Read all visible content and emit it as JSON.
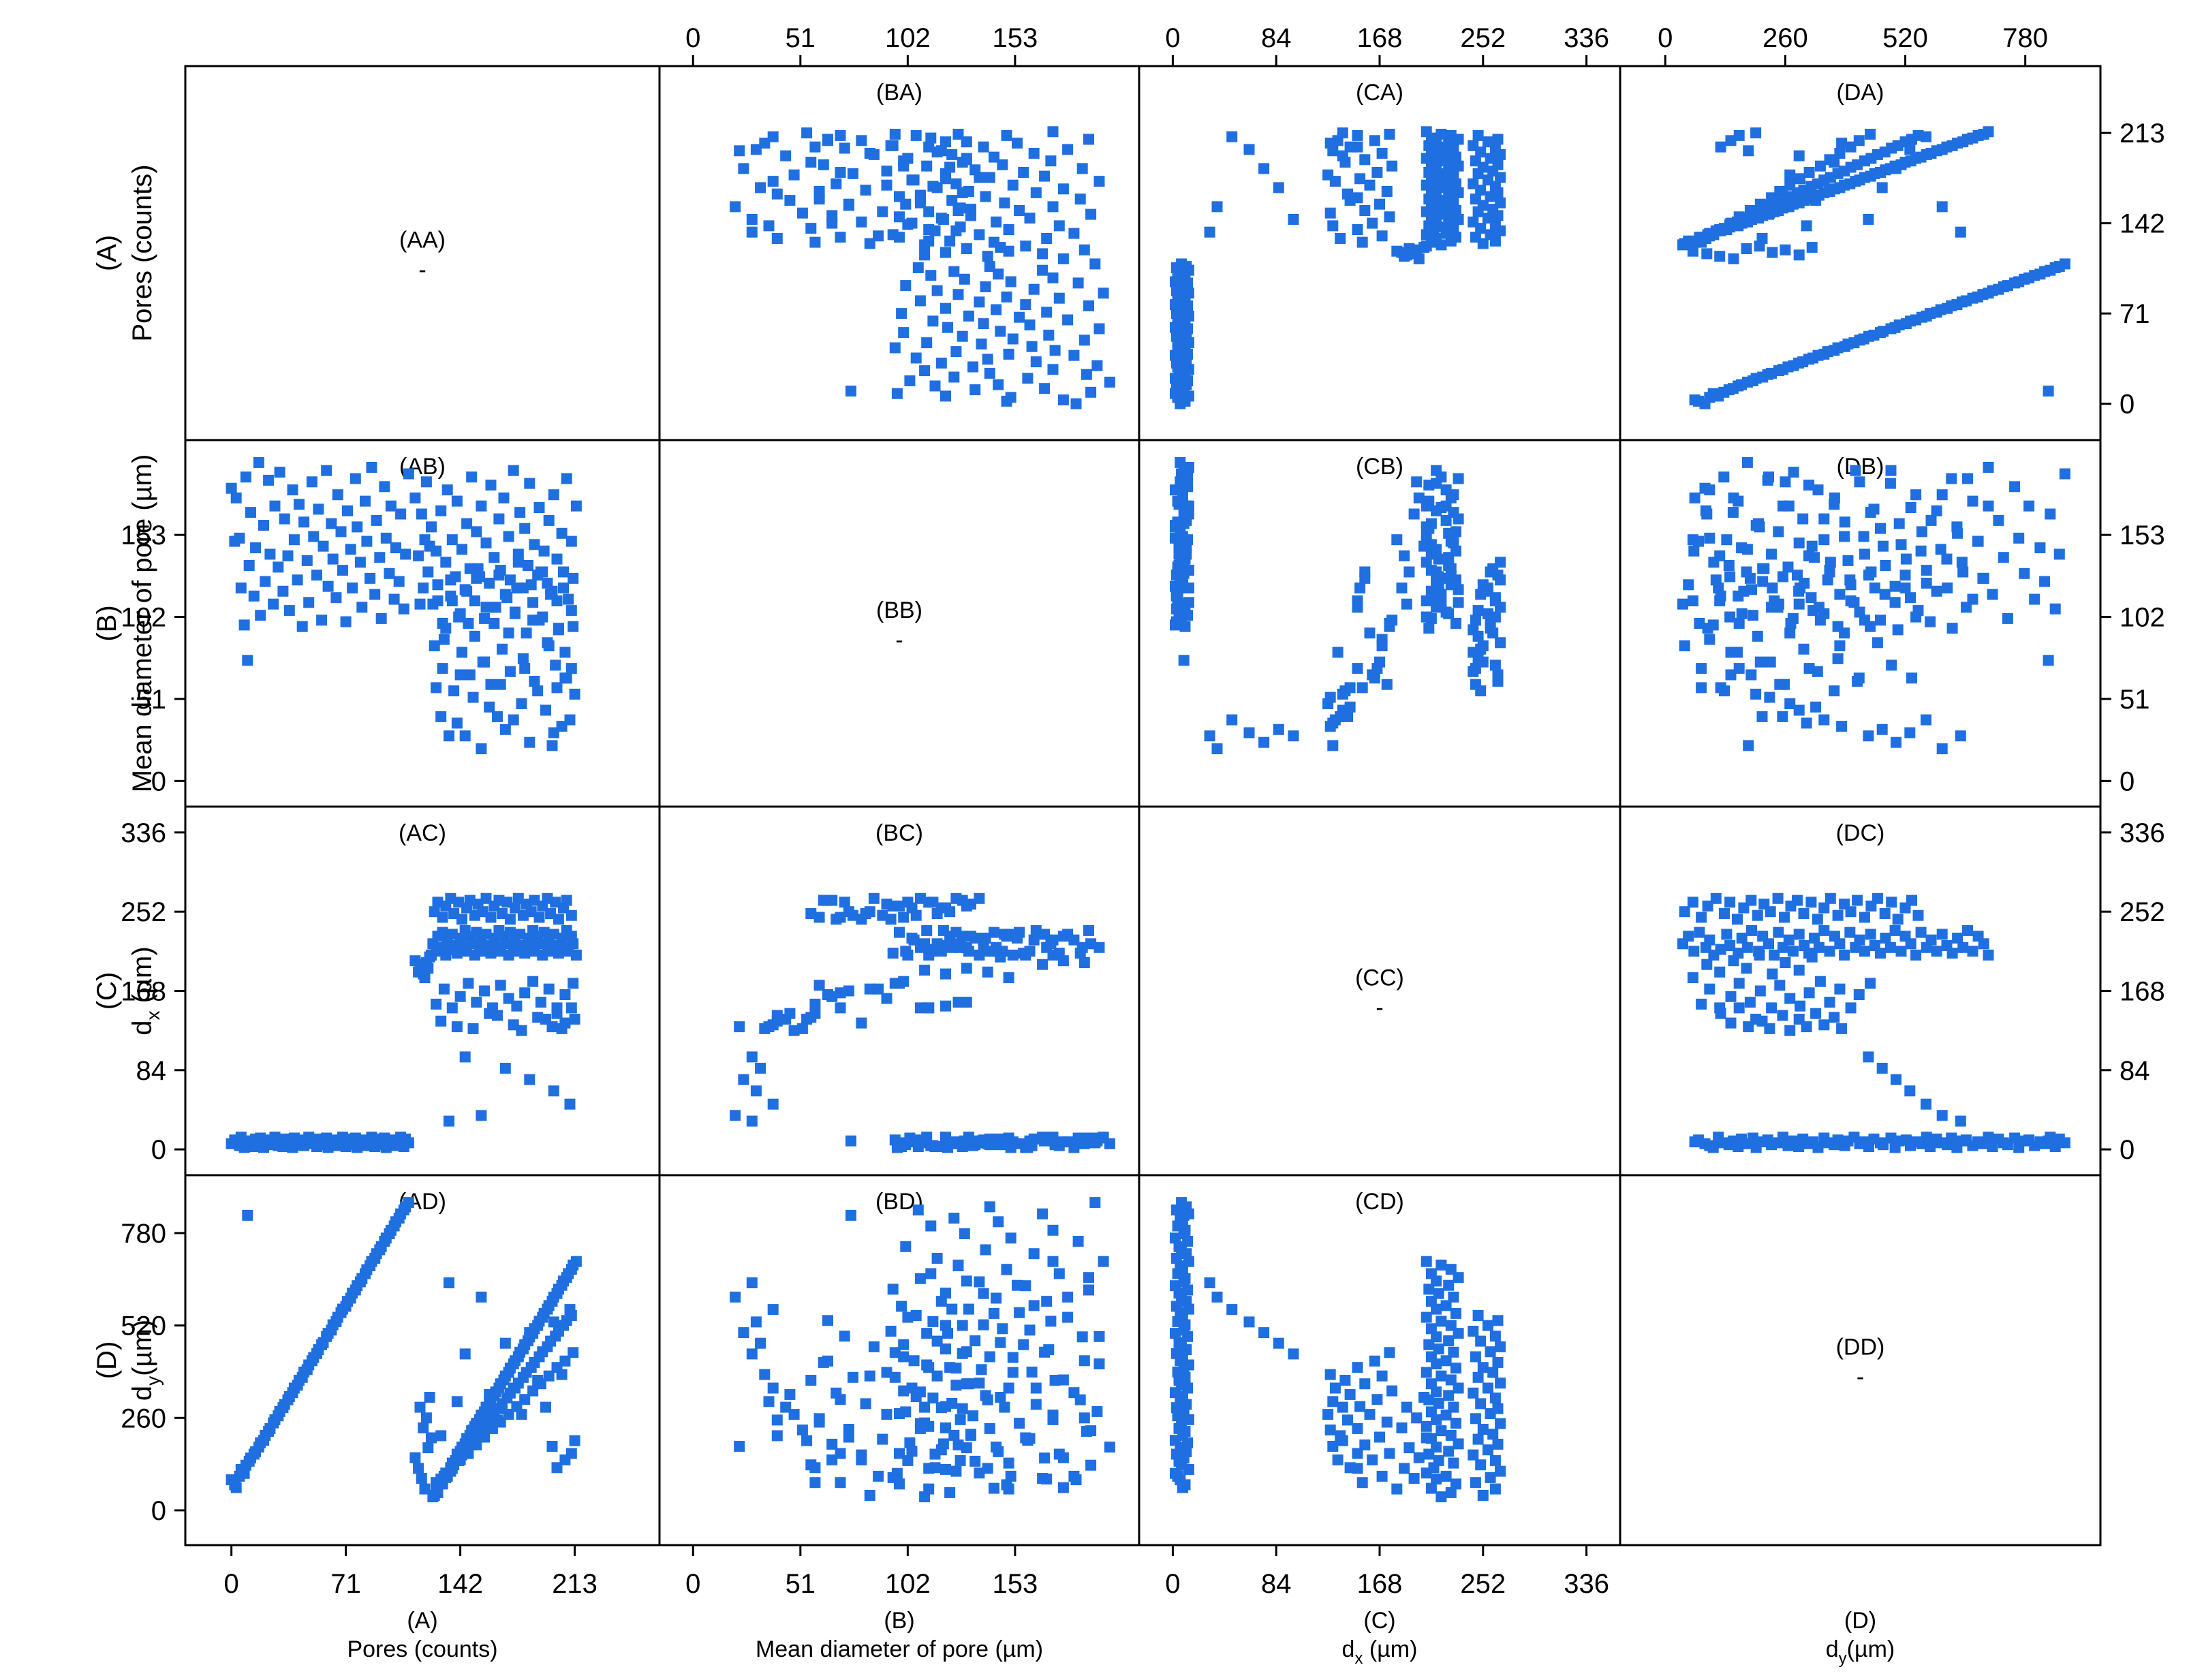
{
  "chart_data": {
    "type": "scatter",
    "layout": "scatter-matrix 4x4",
    "marker_color": "#1f6fe0",
    "marker_shape": "square",
    "grid": false,
    "variables": [
      {
        "key": "A",
        "label": "(A)",
        "name": "Pores (counts)",
        "ticks": [
          "0",
          "71",
          "142",
          "213"
        ],
        "tick_values": [
          0,
          71,
          142,
          213
        ],
        "range": [
          -8,
          245
        ]
      },
      {
        "key": "B",
        "label": "(B)",
        "name": "Mean diameter of pore (µm)",
        "ticks": [
          "0",
          "51",
          "102",
          "153"
        ],
        "tick_values": [
          0,
          51,
          102,
          153
        ],
        "range": [
          0,
          196
        ]
      },
      {
        "key": "C",
        "label": "(C)",
        "name_main": "d",
        "name_sub": "x",
        "name_unit": " (µm)",
        "name_unit_y": " (µm)",
        "ticks": [
          "0",
          "84",
          "168",
          "252",
          "336"
        ],
        "tick_values": [
          0,
          84,
          168,
          252,
          336
        ],
        "range": [
          0,
          336
        ]
      },
      {
        "key": "D",
        "label": "(D)",
        "name_main": "d",
        "name_sub": "y",
        "name_unit": "(µm)",
        "name_unit_y": "(µm)",
        "ticks": [
          "0",
          "260",
          "520",
          "780"
        ],
        "tick_values": [
          0,
          260,
          520,
          780
        ],
        "range": [
          -25,
          870
        ]
      }
    ],
    "panel_titles": {
      "AA": "(AA)",
      "BA": "(BA)",
      "CA": "(CA)",
      "DA": "(DA)",
      "AB": "(AB)",
      "BB": "(BB)",
      "CB": "(CB)",
      "DB": "(DB)",
      "AC": "(AC)",
      "BC": "(BC)",
      "CC": "(CC)",
      "DC": "(DC)",
      "AD": "(AD)",
      "BD": "(BD)",
      "CD": "(CD)",
      "DD": "(DD)"
    },
    "diagonal_dash": "-",
    "observations": [
      [
        0,
        182,
        6,
        86
      ],
      [
        2,
        149,
        10,
        72
      ],
      [
        3,
        176,
        8,
        64
      ],
      [
        5,
        151,
        4,
        96
      ],
      [
        6,
        120,
        13,
        115
      ],
      [
        8,
        97,
        2,
        104
      ],
      [
        9,
        189,
        7,
        127
      ],
      [
        11,
        134,
        5,
        138
      ],
      [
        12,
        167,
        9,
        147
      ],
      [
        14,
        115,
        3,
        158
      ],
      [
        15,
        145,
        11,
        165
      ],
      [
        17,
        198,
        6,
        178
      ],
      [
        18,
        103,
        12,
        190
      ],
      [
        20,
        159,
        2,
        197
      ],
      [
        21,
        124,
        8,
        211
      ],
      [
        23,
        187,
        10,
        222
      ],
      [
        24,
        141,
        5,
        230
      ],
      [
        26,
        110,
        7,
        246
      ],
      [
        27,
        171,
        13,
        255
      ],
      [
        29,
        133,
        4,
        266
      ],
      [
        30,
        192,
        9,
        278
      ],
      [
        32,
        118,
        3,
        289
      ],
      [
        33,
        163,
        11,
        298
      ],
      [
        35,
        140,
        6,
        311
      ],
      [
        36,
        106,
        8,
        320
      ],
      [
        38,
        181,
        2,
        331
      ],
      [
        39,
        150,
        12,
        344
      ],
      [
        41,
        125,
        7,
        352
      ],
      [
        42,
        172,
        5,
        366
      ],
      [
        44,
        96,
        10,
        374
      ],
      [
        45,
        161,
        4,
        389
      ],
      [
        47,
        137,
        9,
        396
      ],
      [
        48,
        111,
        13,
        409
      ],
      [
        50,
        186,
        6,
        421
      ],
      [
        51,
        152,
        8,
        430
      ],
      [
        53,
        128,
        3,
        441
      ],
      [
        54,
        169,
        11,
        452
      ],
      [
        56,
        100,
        7,
        466
      ],
      [
        57,
        146,
        5,
        472
      ],
      [
        59,
        193,
        12,
        489
      ],
      [
        60,
        121,
        2,
        498
      ],
      [
        62,
        160,
        9,
        507
      ],
      [
        63,
        138,
        10,
        522
      ],
      [
        65,
        114,
        4,
        531
      ],
      [
        66,
        178,
        8,
        543
      ],
      [
        68,
        155,
        6,
        556
      ],
      [
        69,
        131,
        13,
        566
      ],
      [
        71,
        99,
        3,
        574
      ],
      [
        72,
        168,
        11,
        588
      ],
      [
        74,
        144,
        7,
        597
      ],
      [
        75,
        120,
        5,
        611
      ],
      [
        77,
        188,
        12,
        620
      ],
      [
        78,
        158,
        2,
        632
      ],
      [
        80,
        136,
        9,
        643
      ],
      [
        81,
        108,
        10,
        652
      ],
      [
        83,
        174,
        4,
        666
      ],
      [
        84,
        149,
        8,
        677
      ],
      [
        86,
        126,
        6,
        688
      ],
      [
        87,
        195,
        13,
        700
      ],
      [
        89,
        116,
        3,
        709
      ],
      [
        90,
        162,
        11,
        722
      ],
      [
        92,
        139,
        7,
        733
      ],
      [
        93,
        101,
        5,
        742
      ],
      [
        95,
        183,
        12,
        757
      ],
      [
        96,
        151,
        2,
        766
      ],
      [
        98,
        129,
        9,
        778
      ],
      [
        99,
        171,
        10,
        788
      ],
      [
        101,
        113,
        4,
        800
      ],
      [
        102,
        145,
        8,
        812
      ],
      [
        104,
        124,
        6,
        822
      ],
      [
        105,
        166,
        13,
        834
      ],
      [
        107,
        107,
        3,
        845
      ],
      [
        108,
        141,
        11,
        854
      ],
      [
        110,
        191,
        7,
        866
      ],
      [
        10,
        75,
        9,
        830
      ],
      [
        125,
        110,
        218,
        38
      ],
      [
        127,
        143,
        210,
        62
      ],
      [
        128,
        122,
        226,
        50
      ],
      [
        130,
        168,
        214,
        88
      ],
      [
        131,
        98,
        230,
        74
      ],
      [
        133,
        136,
        206,
        105
      ],
      [
        134,
        181,
        222,
        96
      ],
      [
        136,
        115,
        212,
        120
      ],
      [
        137,
        150,
        228,
        133
      ],
      [
        139,
        127,
        216,
        140
      ],
      [
        140,
        174,
        208,
        158
      ],
      [
        142,
        104,
        224,
        166
      ],
      [
        143,
        144,
        214,
        178
      ],
      [
        145,
        119,
        232,
        187
      ],
      [
        146,
        160,
        210,
        202
      ],
      [
        148,
        132,
        226,
        211
      ],
      [
        149,
        189,
        218,
        224
      ],
      [
        151,
        112,
        206,
        236
      ],
      [
        152,
        155,
        230,
        245
      ],
      [
        154,
        127,
        214,
        255
      ],
      [
        155,
        171,
        222,
        268
      ],
      [
        157,
        101,
        210,
        277
      ],
      [
        158,
        148,
        228,
        290
      ],
      [
        160,
        123,
        216,
        301
      ],
      [
        161,
        184,
        208,
        311
      ],
      [
        163,
        139,
        224,
        323
      ],
      [
        164,
        108,
        214,
        333
      ],
      [
        166,
        163,
        232,
        344
      ],
      [
        167,
        131,
        210,
        356
      ],
      [
        169,
        176,
        226,
        367
      ],
      [
        170,
        116,
        218,
        378
      ],
      [
        172,
        152,
        206,
        388
      ],
      [
        173,
        125,
        230,
        400
      ],
      [
        175,
        193,
        214,
        412
      ],
      [
        176,
        105,
        222,
        421
      ],
      [
        178,
        141,
        210,
        432
      ],
      [
        179,
        167,
        228,
        445
      ],
      [
        181,
        120,
        216,
        454
      ],
      [
        182,
        157,
        208,
        466
      ],
      [
        184,
        134,
        224,
        477
      ],
      [
        185,
        185,
        214,
        488
      ],
      [
        187,
        111,
        232,
        498
      ],
      [
        188,
        147,
        210,
        511
      ],
      [
        190,
        128,
        226,
        520
      ],
      [
        191,
        170,
        218,
        532
      ],
      [
        193,
        102,
        206,
        543
      ],
      [
        194,
        143,
        230,
        554
      ],
      [
        196,
        123,
        214,
        566
      ],
      [
        197,
        162,
        222,
        576
      ],
      [
        199,
        118,
        210,
        588
      ],
      [
        200,
        178,
        228,
        600
      ],
      [
        202,
        138,
        216,
        610
      ],
      [
        203,
        95,
        208,
        622
      ],
      [
        205,
        154,
        224,
        633
      ],
      [
        206,
        130,
        214,
        645
      ],
      [
        208,
        188,
        232,
        655
      ],
      [
        209,
        113,
        210,
        666
      ],
      [
        211,
        149,
        226,
        678
      ],
      [
        212,
        126,
        218,
        690
      ],
      [
        214,
        171,
        206,
        700
      ],
      [
        126,
        84,
        252,
        42
      ],
      [
        128,
        112,
        262,
        60
      ],
      [
        131,
        70,
        246,
        78
      ],
      [
        133,
        95,
        258,
        92
      ],
      [
        136,
        125,
        266,
        110
      ],
      [
        138,
        56,
        250,
        128
      ],
      [
        141,
        102,
        262,
        140
      ],
      [
        143,
        80,
        244,
        156
      ],
      [
        146,
        118,
        256,
        170
      ],
      [
        148,
        66,
        264,
        186
      ],
      [
        151,
        90,
        248,
        200
      ],
      [
        153,
        132,
        260,
        214
      ],
      [
        156,
        74,
        252,
        228
      ],
      [
        158,
        108,
        266,
        244
      ],
      [
        161,
        60,
        246,
        258
      ],
      [
        163,
        98,
        258,
        272
      ],
      [
        166,
        128,
        264,
        286
      ],
      [
        168,
        82,
        250,
        300
      ],
      [
        171,
        114,
        262,
        316
      ],
      [
        173,
        68,
        244,
        330
      ],
      [
        176,
        104,
        256,
        344
      ],
      [
        178,
        136,
        266,
        358
      ],
      [
        181,
        76,
        248,
        374
      ],
      [
        183,
        92,
        260,
        388
      ],
      [
        186,
        122,
        252,
        402
      ],
      [
        188,
        62,
        264,
        416
      ],
      [
        191,
        100,
        246,
        432
      ],
      [
        193,
        130,
        258,
        446
      ],
      [
        196,
        86,
        266,
        460
      ],
      [
        198,
        116,
        250,
        476
      ],
      [
        201,
        72,
        262,
        490
      ],
      [
        203,
        94,
        244,
        504
      ],
      [
        206,
        120,
        256,
        520
      ],
      [
        208,
        64,
        264,
        534
      ],
      [
        211,
        106,
        248,
        548
      ],
      [
        127,
        58,
        154,
        78
      ],
      [
        132,
        88,
        170,
        96
      ],
      [
        137,
        112,
        150,
        118
      ],
      [
        142,
        66,
        162,
        142
      ],
      [
        147,
        98,
        176,
        160
      ],
      [
        152,
        126,
        156,
        184
      ],
      [
        157,
        74,
        168,
        206
      ],
      [
        162,
        108,
        150,
        230
      ],
      [
        167,
        60,
        174,
        248
      ],
      [
        172,
        92,
        160,
        270
      ],
      [
        177,
        120,
        152,
        292
      ],
      [
        182,
        70,
        166,
        312
      ],
      [
        187,
        100,
        178,
        336
      ],
      [
        192,
        130,
        156,
        356
      ],
      [
        197,
        84,
        170,
        378
      ],
      [
        202,
        112,
        150,
        402
      ],
      [
        207,
        64,
        164,
        420
      ],
      [
        212,
        96,
        176,
        444
      ],
      [
        130,
        40,
        136,
        210
      ],
      [
        150,
        52,
        128,
        226
      ],
      [
        165,
        40,
        142,
        254
      ],
      [
        180,
        48,
        126,
        270
      ],
      [
        195,
        44,
        138,
        290
      ],
      [
        140,
        36,
        130,
        306
      ],
      [
        160,
        46,
        144,
        326
      ],
      [
        175,
        38,
        132,
        344
      ],
      [
        190,
        56,
        140,
        366
      ],
      [
        205,
        34,
        128,
        382
      ],
      [
        145,
        28,
        98,
        440
      ],
      [
        170,
        32,
        86,
        470
      ],
      [
        185,
        24,
        74,
        500
      ],
      [
        200,
        30,
        62,
        530
      ],
      [
        210,
        38,
        48,
        565
      ],
      [
        155,
        20,
        36,
        600
      ],
      [
        135,
        28,
        30,
        640
      ],
      [
        120,
        150,
        182,
        60
      ],
      [
        118,
        166,
        196,
        90
      ],
      [
        116,
        140,
        188,
        118
      ],
      [
        114,
        176,
        200,
        148
      ],
      [
        122,
        130,
        192,
        176
      ],
      [
        124,
        158,
        206,
        204
      ],
      [
        119,
        120,
        186,
        232
      ],
      [
        121,
        186,
        198,
        260
      ],
      [
        117,
        110,
        190,
        290
      ],
      [
        123,
        146,
        204,
        318
      ],
      [
        202,
        58,
        144,
        120
      ],
      [
        207,
        80,
        134,
        142
      ],
      [
        211,
        70,
        150,
        160
      ],
      [
        199,
        22,
        130,
        180
      ],
      [
        213,
        54,
        138,
        196
      ]
    ]
  }
}
